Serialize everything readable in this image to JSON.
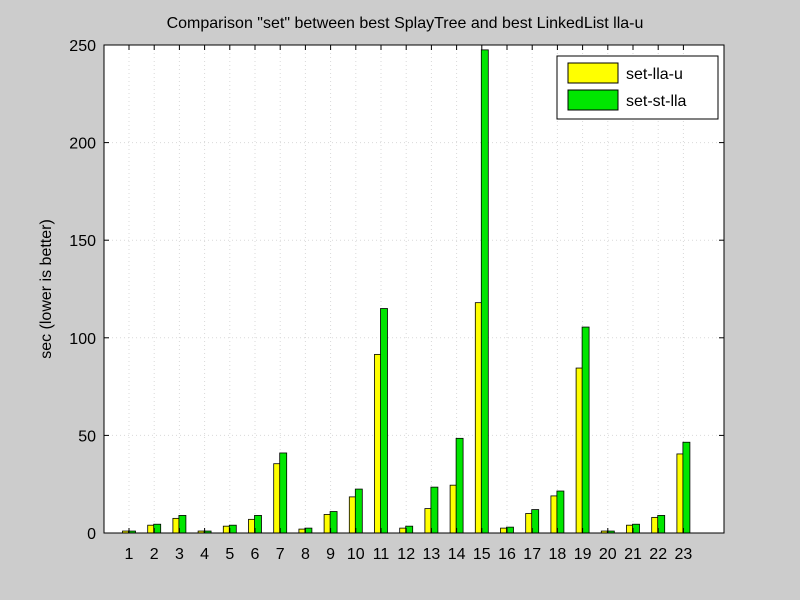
{
  "chart_data": {
    "type": "bar",
    "title": "Comparison \"set\" between best SplayTree and best LinkedList lla-u",
    "xlabel": "",
    "ylabel": "sec (lower is better)",
    "ylim": [
      0,
      250
    ],
    "yticks": [
      0,
      50,
      100,
      150,
      200,
      250
    ],
    "grid": true,
    "legend_position": "top-right",
    "categories": [
      "1",
      "2",
      "3",
      "4",
      "5",
      "6",
      "7",
      "8",
      "9",
      "10",
      "11",
      "12",
      "13",
      "14",
      "15",
      "16",
      "17",
      "18",
      "19",
      "20",
      "21",
      "22",
      "23"
    ],
    "series": [
      {
        "name": "set-lla-u",
        "color": "#ffff00",
        "values": [
          1.0,
          4.0,
          7.5,
          1.0,
          3.5,
          7.0,
          35.5,
          2.0,
          9.5,
          18.5,
          91.5,
          2.5,
          12.5,
          24.5,
          118.0,
          2.5,
          10.0,
          19.0,
          84.5,
          1.0,
          4.0,
          8.0,
          40.5
        ]
      },
      {
        "name": "set-st-lla",
        "color": "#00e600",
        "values": [
          1.0,
          4.5,
          9.0,
          1.0,
          4.0,
          9.0,
          41.0,
          2.5,
          11.0,
          22.5,
          115.0,
          3.5,
          23.5,
          48.5,
          247.5,
          3.0,
          12.0,
          21.5,
          105.5,
          1.0,
          4.5,
          9.0,
          46.5
        ]
      }
    ]
  }
}
